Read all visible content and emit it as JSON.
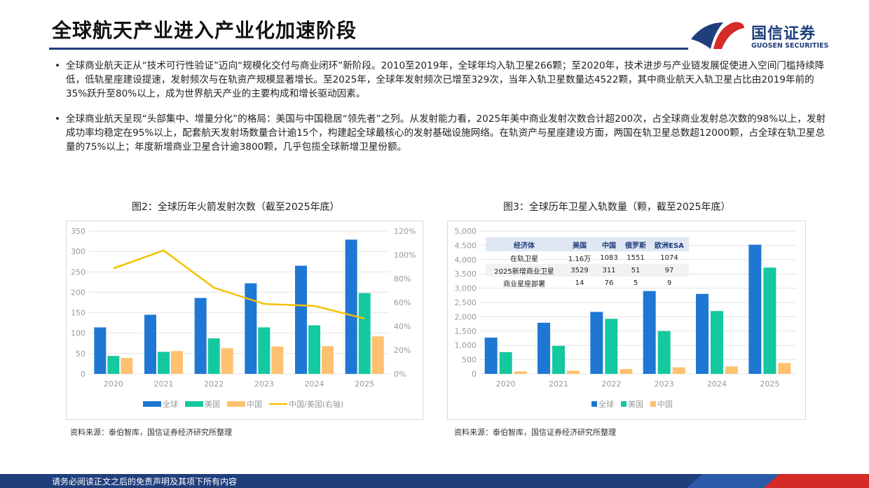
{
  "header": {
    "title": "全球航天产业进入产业化加速阶段",
    "logo_cn": "国信证券",
    "logo_en": "GUOSEN SECURITIES"
  },
  "bullets": [
    {
      "symbol": "•",
      "text": "全球商业航天正从“技术可行性验证”迈向“规模化交付与商业闭环”新阶段。2010至2019年，全球年均入轨卫星266颗；至2020年，技术进步与产业链发展促使进入空间门槛持续降低，低轨星座建设提速，发射频次与在轨资产规模显著增长。至2025年，全球年发射频次已增至329次，当年入轨卫星数量达4522颗，其中商业航天入轨卫星占比由2019年前的35%跃升至80%以上，成为世界航天产业的主要构成和增长驱动因素。"
    },
    {
      "symbol": "•",
      "text": "全球商业航天呈现“头部集中、增量分化”的格局：美国与中国稳居“领先者”之列。从发射能力看，2025年美中商业发射次数合计超200次，占全球商业发射总次数的98%以上，发射成功率均稳定在95%以上，配套航天发射场数量合计逾15个，构建起全球最核心的发射基础设施网络。在轨资产与星座建设方面，两国在轨卫星总数超12000颗，占全球在轨卫星总量的75%以上；年度新增商业卫星合计逾3800颗，几乎包揽全球新增卫星份额。"
    }
  ],
  "figures": [
    {
      "title": "图2：全球历年火箭发射次数（截至2025年底）",
      "source": "资料来源：泰伯智库，国信证券经济研究所整理"
    },
    {
      "title": "图3：全球历年卫星入轨数量（颗，截至2025年底）",
      "source": "资料来源：泰伯智库，国信证券经济研究所整理"
    }
  ],
  "table": {
    "headers": [
      "经济体",
      "美国",
      "中国",
      "俄罗斯",
      "欧洲ESA"
    ],
    "rows": [
      [
        "在轨卫星",
        "1.16万",
        "1083",
        "1551",
        "1074"
      ],
      [
        "2025新增商业卫星",
        "3529",
        "311",
        "51",
        "97"
      ],
      [
        "商业星座部署",
        "14",
        "76",
        "5",
        "9"
      ]
    ]
  },
  "footer": {
    "text": "请务必阅读正文之后的免责声明及其项下所有内容"
  },
  "colors": {
    "global": "#1f77d4",
    "us": "#14c8a0",
    "cn": "#ffc170",
    "ratio": "#f5c000",
    "brand": "#1f3e7c",
    "accent_red": "#d42a2a"
  },
  "chart_data": [
    {
      "type": "bar",
      "categories": [
        "2020",
        "2021",
        "2022",
        "2023",
        "2024",
        "2025"
      ],
      "series": [
        {
          "name": "全球",
          "values": [
            114,
            145,
            186,
            222,
            265,
            329
          ]
        },
        {
          "name": "美国",
          "values": [
            44,
            54,
            87,
            114,
            119,
            198
          ]
        },
        {
          "name": "中国",
          "values": [
            39,
            56,
            63,
            67,
            68,
            92
          ]
        }
      ],
      "line_series": {
        "name": "中国/美国(右轴)",
        "values": [
          0.886,
          1.037,
          0.724,
          0.588,
          0.571,
          0.465
        ]
      },
      "ylim": [
        0,
        350
      ],
      "yticks": [
        "0",
        "50",
        "100",
        "150",
        "200",
        "250",
        "300",
        "350"
      ],
      "y2lim": [
        0,
        1.2
      ],
      "y2ticks": [
        "0%",
        "20%",
        "40%",
        "60%",
        "80%",
        "100%",
        "120%"
      ],
      "grid": true,
      "legend_position": "bottom"
    },
    {
      "type": "bar",
      "categories": [
        "2020",
        "2021",
        "2022",
        "2023",
        "2024",
        "2025"
      ],
      "series": [
        {
          "name": "全球",
          "values": [
            1270,
            1790,
            2170,
            2900,
            2800,
            4522
          ]
        },
        {
          "name": "美国",
          "values": [
            760,
            980,
            1930,
            1500,
            2200,
            3720
          ]
        },
        {
          "name": "中国",
          "values": [
            85,
            110,
            170,
            230,
            260,
            380
          ]
        }
      ],
      "ylim": [
        0,
        5000
      ],
      "yticks": [
        "0",
        "500",
        "1,000",
        "1,500",
        "2,000",
        "2,500",
        "3,000",
        "3,500",
        "4,000",
        "4,500",
        "5,000"
      ],
      "grid": true,
      "legend_position": "bottom"
    }
  ]
}
